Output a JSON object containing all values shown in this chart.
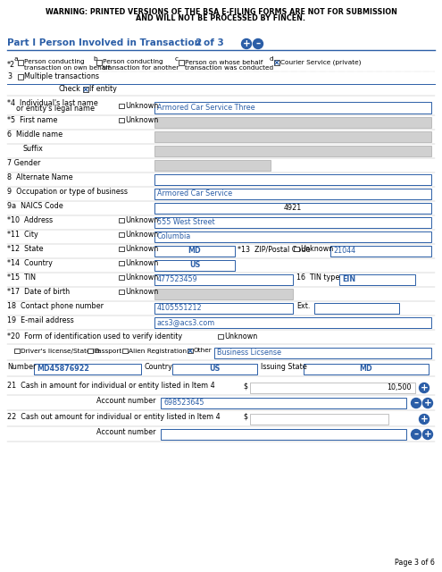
{
  "warning_line1": "WARNING: PRINTED VERSIONS OF THE BSA E-FILING FORMS ARE NOT FOR SUBMISSION",
  "warning_line2": "AND WILL NOT BE PROCESSED BY FINCEN.",
  "part_header": "Part I Person Involved in Transaction  2   of 3",
  "blue": "#2B5EA7",
  "gray_bg": "#D0D0D0",
  "white": "#FFFFFF",
  "black": "#000000",
  "blue_text": "#2B5EA7",
  "light_gray_border": "#AAAAAA",
  "page_footer": "Page 3 of 6",
  "item4_value": "Armored Car Service Three",
  "item9_value": "Armored Car Service",
  "item9a_value": "4921",
  "item10_value": "555 West Street",
  "item11_value": "Columbia",
  "item12_value": "MD",
  "item13_value": "21044",
  "item14_value": "US",
  "item15_value": "477523459",
  "item16_value": "EIN",
  "item18_value": "4105551212",
  "item19_value": "acs3@acs3.com",
  "biz_license_value": "Business Licsense",
  "number_value": "MD45876922",
  "country_value": "US",
  "issuing_state_value": "MD",
  "item21_value": "10,500",
  "item21_acct_value": "698523645"
}
